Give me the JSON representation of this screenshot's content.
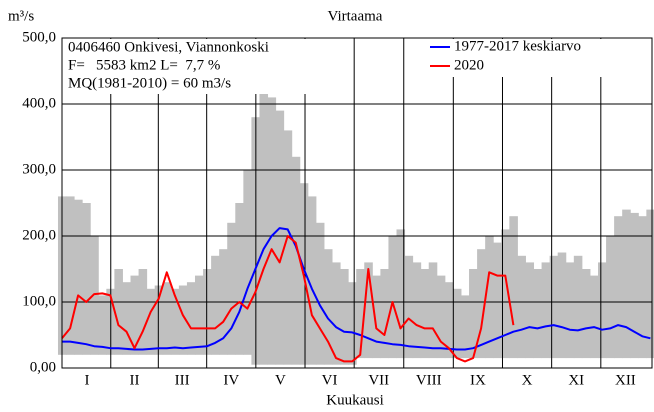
{
  "chart_data": {
    "type": "line",
    "title": "Virtaama",
    "y_unit": "m³/s",
    "x_label": "Kuukausi",
    "annotations": [
      "0406460 Onkivesi, Viannonkoski",
      "F=   5583 km2 L=  7,7 %",
      "MQ(1981-2010) = 60 m3/s"
    ],
    "xlim": [
      0,
      366
    ],
    "xticks": [
      {
        "value": 15.5,
        "label": "I"
      },
      {
        "value": 45,
        "label": "II"
      },
      {
        "value": 74.5,
        "label": "III"
      },
      {
        "value": 105,
        "label": "IV"
      },
      {
        "value": 135.5,
        "label": "V"
      },
      {
        "value": 166,
        "label": "VI"
      },
      {
        "value": 196.5,
        "label": "VII"
      },
      {
        "value": 227.5,
        "label": "VIII"
      },
      {
        "value": 258,
        "label": "IX"
      },
      {
        "value": 288.5,
        "label": "X"
      },
      {
        "value": 319,
        "label": "XI"
      },
      {
        "value": 349.5,
        "label": "XII"
      }
    ],
    "ylim": [
      0,
      500
    ],
    "yticks": [
      {
        "value": 0,
        "label": "0,00"
      },
      {
        "value": 100,
        "label": "100,0"
      },
      {
        "value": 200,
        "label": "200,0"
      },
      {
        "value": 300,
        "label": "300,0"
      },
      {
        "value": 400,
        "label": "400,0"
      },
      {
        "value": 500,
        "label": "500,0"
      }
    ],
    "grid": true,
    "legend": "top-right",
    "x": [
      0,
      5,
      10,
      15,
      20,
      25,
      30,
      35,
      40,
      45,
      50,
      55,
      60,
      65,
      70,
      75,
      80,
      85,
      90,
      95,
      100,
      105,
      110,
      115,
      120,
      125,
      130,
      135,
      140,
      145,
      150,
      155,
      160,
      165,
      170,
      175,
      180,
      185,
      190,
      195,
      200,
      205,
      210,
      215,
      220,
      225,
      230,
      235,
      240,
      245,
      250,
      255,
      260,
      265,
      270,
      275,
      280,
      285,
      290,
      295,
      300,
      305,
      310,
      315,
      320,
      325,
      330,
      335,
      340,
      345,
      350,
      355,
      360,
      365
    ],
    "range": {
      "color": "#c0c0c0",
      "high": [
        260,
        260,
        255,
        250,
        200,
        110,
        120,
        150,
        130,
        140,
        150,
        120,
        125,
        130,
        120,
        125,
        130,
        140,
        150,
        170,
        180,
        220,
        250,
        300,
        380,
        420,
        410,
        390,
        360,
        320,
        280,
        260,
        220,
        180,
        160,
        150,
        130,
        150,
        160,
        140,
        150,
        200,
        210,
        170,
        160,
        150,
        160,
        140,
        130,
        120,
        110,
        150,
        180,
        200,
        190,
        210,
        230,
        170,
        160,
        150,
        160,
        170,
        175,
        160,
        170,
        150,
        140,
        160,
        200,
        230,
        240,
        235,
        230,
        240
      ],
      "low": [
        20,
        20,
        20,
        20,
        20,
        20,
        20,
        20,
        20,
        20,
        20,
        20,
        20,
        20,
        20,
        20,
        20,
        20,
        20,
        20,
        20,
        20,
        20,
        20,
        5,
        5,
        5,
        5,
        5,
        5,
        5,
        5,
        5,
        5,
        5,
        5,
        5,
        15,
        15,
        15,
        15,
        15,
        15,
        15,
        15,
        15,
        15,
        15,
        15,
        15,
        15,
        15,
        15,
        15,
        15,
        15,
        15,
        15,
        15,
        15,
        15,
        15,
        15,
        15,
        15,
        15,
        15,
        15,
        15,
        15,
        15,
        15,
        15,
        15
      ]
    },
    "series": [
      {
        "name": "1977-2017 keskiarvo",
        "color": "#0000ff",
        "values": [
          40,
          40,
          38,
          36,
          33,
          32,
          30,
          30,
          29,
          28,
          28,
          29,
          30,
          30,
          31,
          30,
          31,
          32,
          33,
          38,
          45,
          60,
          85,
          120,
          150,
          180,
          200,
          212,
          210,
          185,
          150,
          120,
          95,
          75,
          62,
          55,
          54,
          50,
          45,
          40,
          38,
          36,
          35,
          33,
          32,
          31,
          30,
          30,
          29,
          28,
          28,
          30,
          35,
          40,
          45,
          50,
          55,
          58,
          62,
          60,
          63,
          65,
          62,
          58,
          57,
          60,
          62,
          58,
          60,
          65,
          62,
          55,
          48,
          45
        ]
      },
      {
        "name": "2020",
        "color": "#ff0000",
        "values": [
          45,
          60,
          110,
          100,
          112,
          113,
          110,
          65,
          55,
          30,
          55,
          85,
          105,
          145,
          110,
          80,
          60,
          60,
          60,
          60,
          70,
          90,
          100,
          90,
          115,
          150,
          180,
          160,
          200,
          190,
          140,
          80,
          60,
          40,
          15,
          10,
          10,
          20,
          150,
          60,
          50,
          100,
          60,
          75,
          65,
          60,
          60,
          40,
          30,
          15,
          10,
          15,
          60,
          145,
          140,
          140,
          65,
          null,
          null,
          null,
          null,
          null,
          null,
          null,
          null,
          null,
          null,
          null,
          null,
          null,
          null,
          null,
          null,
          null
        ]
      }
    ]
  }
}
